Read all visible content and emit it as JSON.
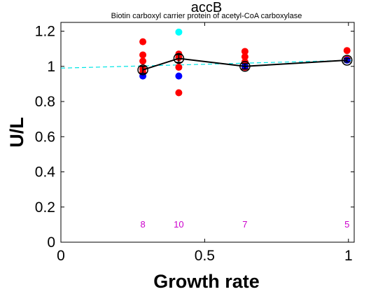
{
  "chart_data": {
    "type": "scatter",
    "title": "accB",
    "subtitle": "Biotin carboxyl carrier protein of acetyl-CoA carboxylase",
    "xlabel": "Growth rate",
    "ylabel": "U/L",
    "xlim": [
      0,
      1.02
    ],
    "ylim": [
      0,
      1.25
    ],
    "xticks": [
      0,
      0.5,
      1
    ],
    "xtick_labels": [
      "0",
      "0.5",
      "1"
    ],
    "yticks": [
      0,
      0.2,
      0.4,
      0.6,
      0.8,
      1,
      1.2
    ],
    "ytick_labels": [
      "0",
      "0.2",
      "0.4",
      "0.6",
      "0.8",
      "1",
      "1.2"
    ],
    "grid": false,
    "colors": {
      "red": "#ff0000",
      "blue": "#0000ff",
      "cyan": "#00ffff",
      "mean_line": "#000000",
      "fit_line": "#00e5e5",
      "count_text": "#cc00cc"
    },
    "series": [
      {
        "marker": "red-dot",
        "points": [
          [
            0.285,
            1.14
          ],
          [
            0.285,
            1.065
          ],
          [
            0.285,
            1.03
          ],
          [
            0.285,
            0.985
          ],
          [
            0.285,
            0.965
          ],
          [
            0.41,
            1.07
          ],
          [
            0.41,
            1.05
          ],
          [
            0.41,
            0.995
          ],
          [
            0.41,
            0.85
          ],
          [
            0.64,
            1.085
          ],
          [
            0.64,
            1.055
          ],
          [
            0.64,
            1.025
          ],
          [
            0.64,
            0.995
          ],
          [
            0.995,
            1.09
          ],
          [
            0.995,
            1.04
          ]
        ]
      },
      {
        "marker": "blue-dot",
        "points": [
          [
            0.285,
            0.945
          ],
          [
            0.41,
            0.945
          ],
          [
            0.64,
            1.0
          ],
          [
            0.995,
            1.035
          ]
        ]
      },
      {
        "marker": "cyan-dot",
        "points": [
          [
            0.41,
            1.195
          ]
        ]
      },
      {
        "marker": "mean-circle-line",
        "points": [
          [
            0.285,
            0.98
          ],
          [
            0.41,
            1.045
          ],
          [
            0.64,
            1.0
          ],
          [
            0.995,
            1.035
          ]
        ],
        "errors": [
          0.02,
          0.022,
          0.015,
          0.01
        ]
      },
      {
        "marker": "fit-line-dashed",
        "points": [
          [
            0,
            0.99
          ],
          [
            1.02,
            1.035
          ]
        ]
      }
    ],
    "counts": [
      {
        "x": 0.285,
        "label": "8"
      },
      {
        "x": 0.41,
        "label": "10"
      },
      {
        "x": 0.64,
        "label": "7"
      },
      {
        "x": 0.995,
        "label": "5"
      }
    ],
    "count_y": 0.1
  }
}
